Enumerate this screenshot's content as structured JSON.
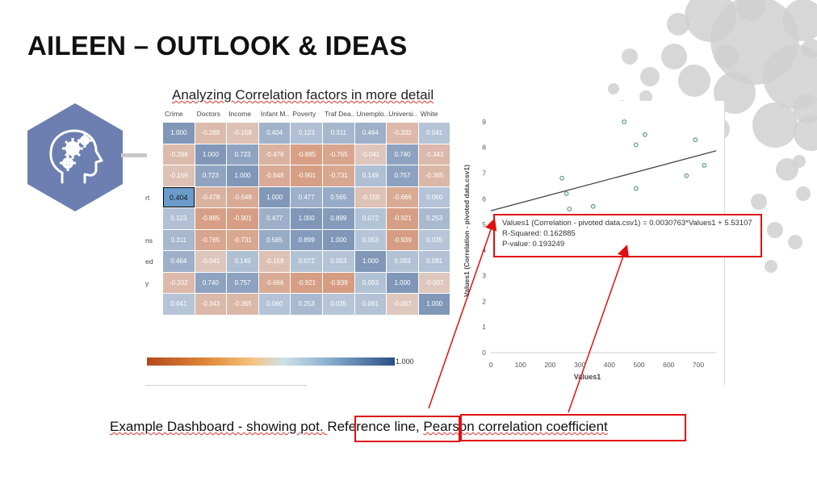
{
  "slide": {
    "title": "AILEEN – OUTLOOK & IDEAS",
    "subtitle": "Analyzing Correlation factors in more detail",
    "caption_prefix": "Example Dashboard  - showing pot. ",
    "caption_ref": "Reference line,",
    "caption_pearson": "Pearson correlation coefficient",
    "icon": "head-gears-icon"
  },
  "heatmap": {
    "columns": [
      "Crime",
      "Doctors",
      "Income",
      "Infant M..",
      "Poverty",
      "Traf Dea..",
      "Unemplo..",
      "Universi..",
      "White"
    ],
    "row_labels": [
      "",
      "",
      "",
      "rt",
      "",
      "ns",
      "ed",
      "y",
      ""
    ],
    "cells": [
      [
        "1.000",
        "-0.288",
        "-0.159",
        "0.404",
        "0.123",
        "0.311",
        "0.464",
        "-0.332",
        "0.041"
      ],
      [
        "-0.288",
        "1.000",
        "0.723",
        "-0.478",
        "-0.885",
        "-0.765",
        "-0.041",
        "0.740",
        "-0.343"
      ],
      [
        "-0.159",
        "0.723",
        "1.000",
        "-0.648",
        "-0.901",
        "-0.731",
        "0.149",
        "0.757",
        "-0.365"
      ],
      [
        "0.404",
        "-0.478",
        "-0.648",
        "1.000",
        "0.477",
        "0.565",
        "-0.158",
        "-0.666",
        "0.060"
      ],
      [
        "0.123",
        "-0.885",
        "-0.901",
        "0.477",
        "1.000",
        "0.899",
        "0.072",
        "-0.921",
        "0.253"
      ],
      [
        "0.311",
        "-0.765",
        "-0.731",
        "0.565",
        "0.899",
        "1.000",
        "0.053",
        "-0.939",
        "0.035"
      ],
      [
        "0.464",
        "-0.041",
        "0.149",
        "-0.158",
        "0.072",
        "0.053",
        "1.000",
        "0.093",
        "0.081"
      ],
      [
        "-0.332",
        "0.740",
        "0.757",
        "-0.666",
        "-0.921",
        "-0.939",
        "0.093",
        "1.000",
        "-0.007"
      ],
      [
        "0.041",
        "-0.343",
        "-0.365",
        "0.060",
        "0.253",
        "0.035",
        "0.081",
        "-0.007",
        "1.000"
      ]
    ],
    "selected_value": "0.404",
    "legend_max": "1.000",
    "colors": {
      "positive": "#2c4f86",
      "negative": "#c8561f",
      "neutral": "#e6eef4"
    }
  },
  "tooltip": {
    "line1": "Values1 (Correlation - pivoted data.csv1) = 0.0030763*Values1 + 5.53107",
    "line2": "R-Squared: 0.162885",
    "line3": "P-value: 0.193249"
  },
  "chart_data": {
    "type": "scatter",
    "xlabel": "Values1",
    "ylabel": "Values1 (Correlation - pivoted data.csv1)",
    "xlim": [
      0,
      760
    ],
    "ylim": [
      0,
      9.5
    ],
    "xticks": [
      0,
      100,
      200,
      300,
      400,
      500,
      600,
      700
    ],
    "yticks": [
      0,
      1,
      2,
      3,
      4,
      5,
      6,
      7,
      8,
      9
    ],
    "x": [
      240,
      255,
      265,
      345,
      450,
      490,
      490,
      520,
      660,
      690,
      720
    ],
    "y": [
      6.8,
      6.2,
      5.6,
      5.7,
      9.0,
      6.4,
      8.1,
      8.5,
      6.9,
      8.3,
      7.3
    ],
    "trend": {
      "slope": 0.0030763,
      "intercept": 5.53107
    },
    "colors": {
      "point": "#5a9a8e",
      "trend": "#444444"
    }
  }
}
